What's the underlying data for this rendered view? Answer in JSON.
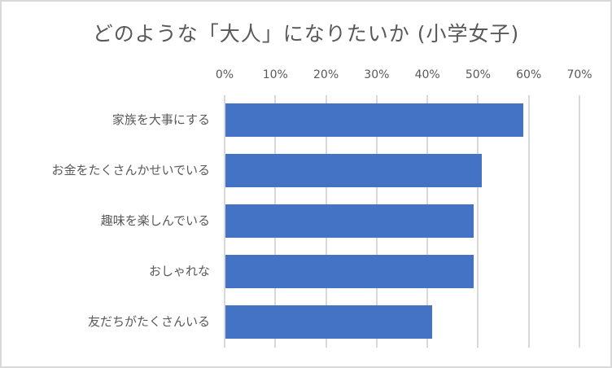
{
  "chart_data": {
    "type": "bar",
    "orientation": "horizontal",
    "title": "どのような「大人」になりたいか (小学女子)",
    "categories": [
      "家族を大事にする",
      "お金をたくさんかせいでいる",
      "趣味を楽しんでいる",
      "おしゃれな",
      "友だちがたくさんいる"
    ],
    "values": [
      58.7,
      50.6,
      48.9,
      48.9,
      40.7
    ],
    "unit": "%",
    "xlabel": "",
    "ylabel": "",
    "xlim": [
      0,
      70
    ],
    "x_ticks": [
      "0%",
      "10%",
      "20%",
      "30%",
      "40%",
      "50%",
      "60%",
      "70%"
    ],
    "x_axis_position": "top",
    "grid": true,
    "legend": null,
    "bar_color": "#4472C4"
  },
  "colors": {
    "bar": "#4472C4",
    "gridline": "#D9D9D9",
    "text": "#595959",
    "border": "#D9D9D9"
  }
}
